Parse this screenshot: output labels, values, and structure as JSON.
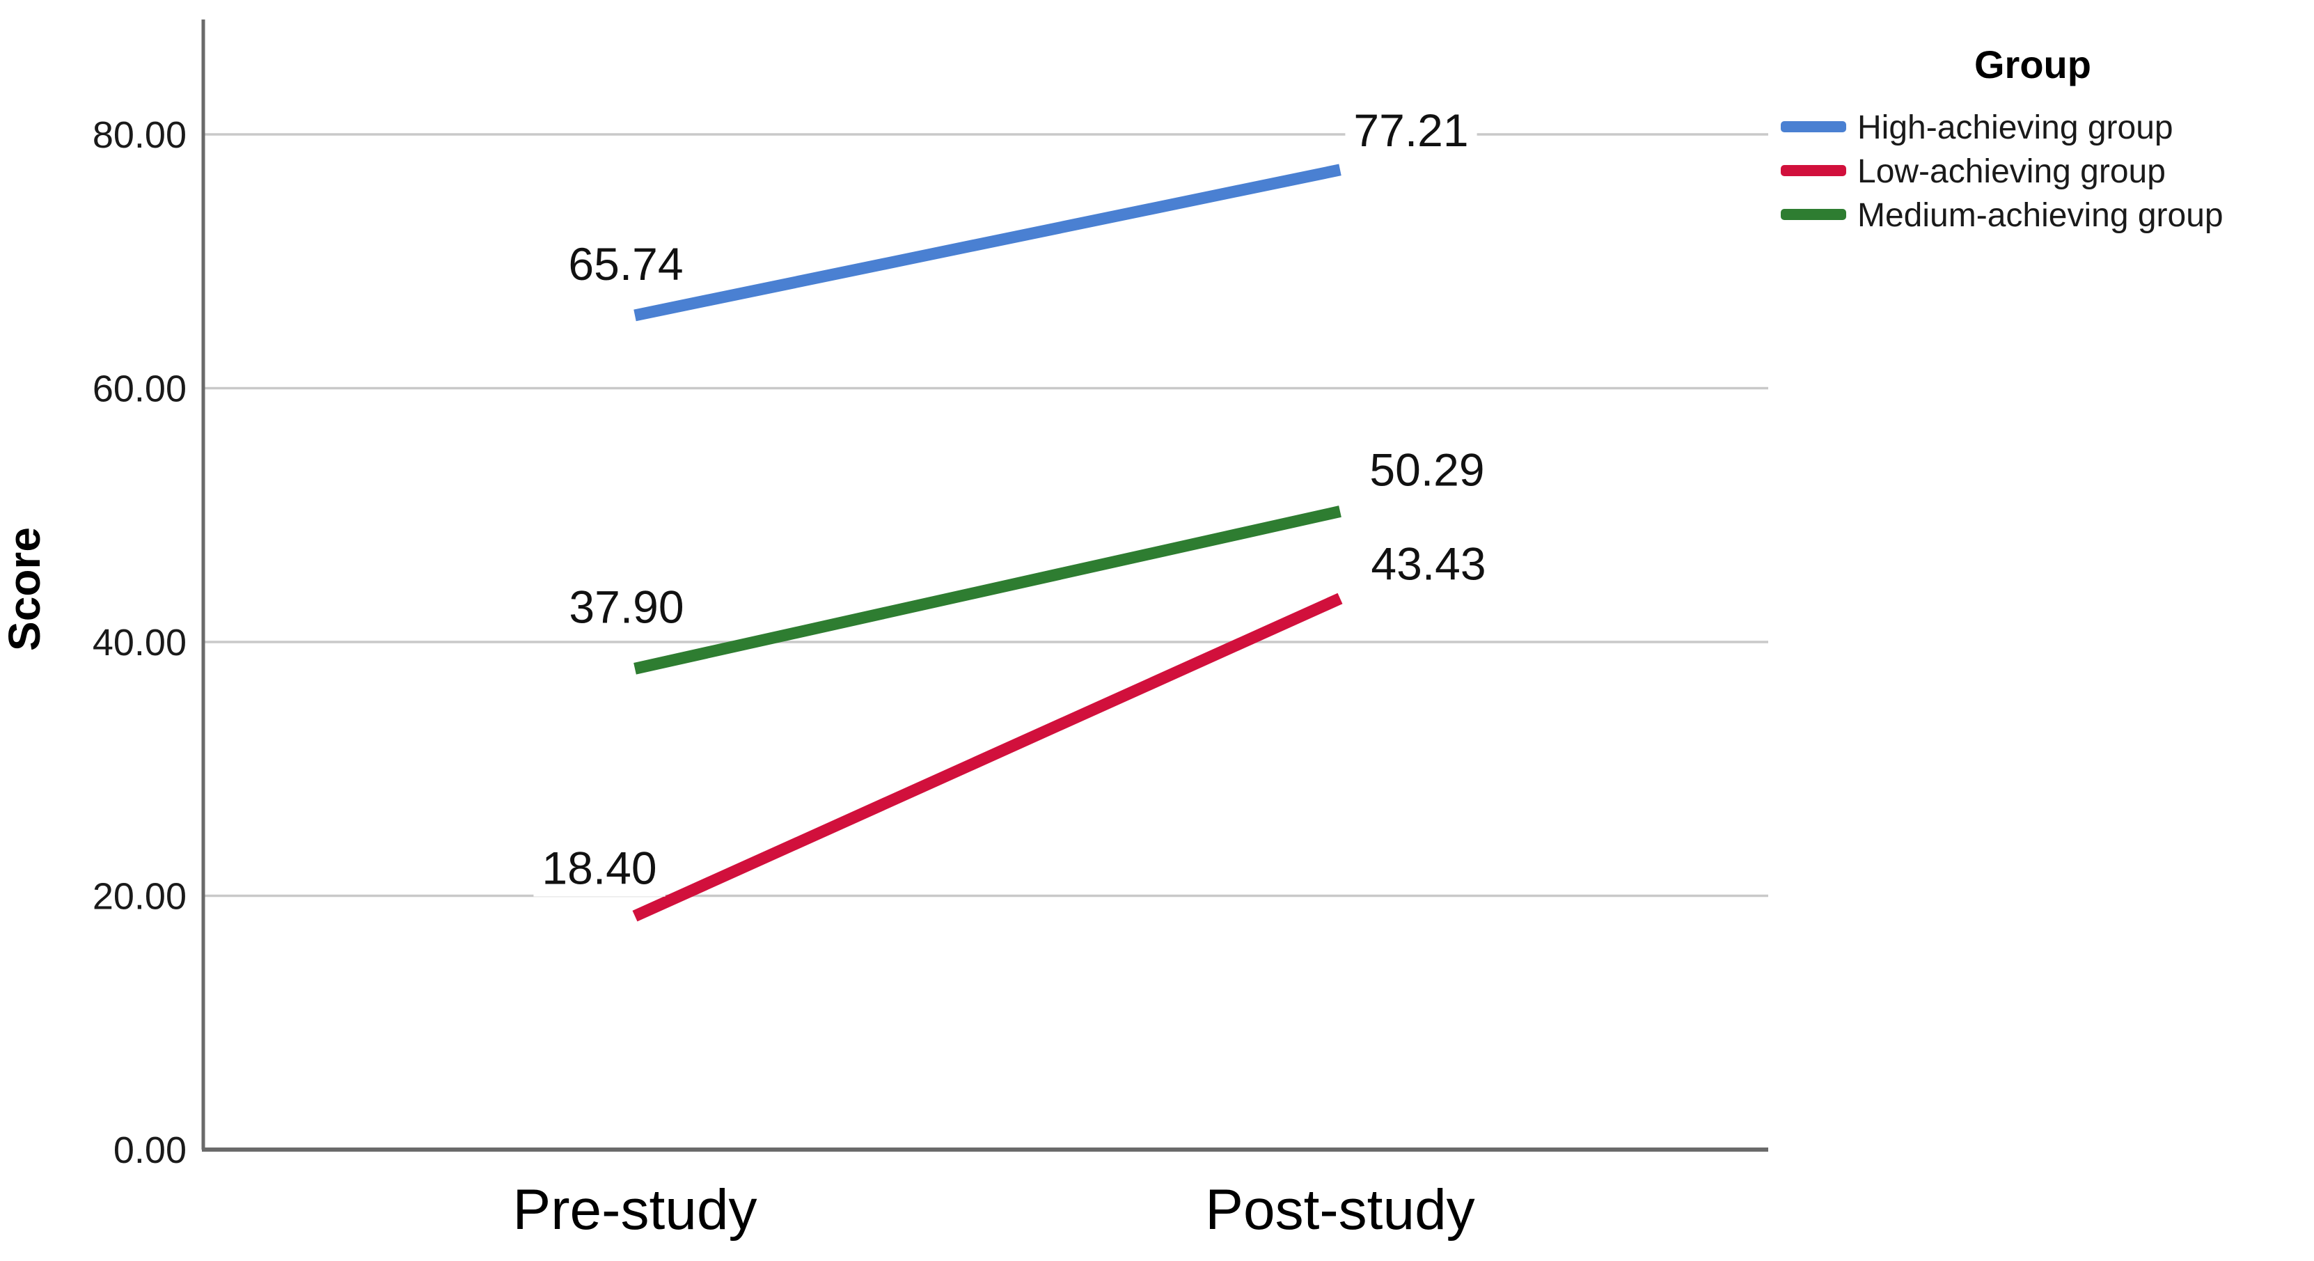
{
  "chart_data": {
    "type": "line",
    "title": "",
    "xlabel": "",
    "ylabel": "Score",
    "legend_title": "Group",
    "legend_position": "right",
    "grid": true,
    "categories": [
      "Pre-study",
      "Post-study"
    ],
    "series": [
      {
        "id": "high",
        "name": "High-achieving group",
        "color": "#4a80d2",
        "values": [
          65.74,
          77.21
        ]
      },
      {
        "id": "low",
        "name": "Low-achieving group",
        "color": "#d1103c",
        "values": [
          18.4,
          43.43
        ]
      },
      {
        "id": "medium",
        "name": "Medium-achieving group",
        "color": "#2e7d31",
        "values": [
          37.9,
          50.29
        ]
      }
    ],
    "ytick_values": [
      0,
      20,
      40,
      60,
      80
    ],
    "ytick_labels": [
      "0.00",
      "20.00",
      "40.00",
      "60.00",
      "80.00"
    ],
    "ylim": [
      0,
      89
    ]
  },
  "colors": {
    "background": "#ffffff",
    "axis": "#6a6a6a",
    "gridline": "#c9c9c9"
  }
}
